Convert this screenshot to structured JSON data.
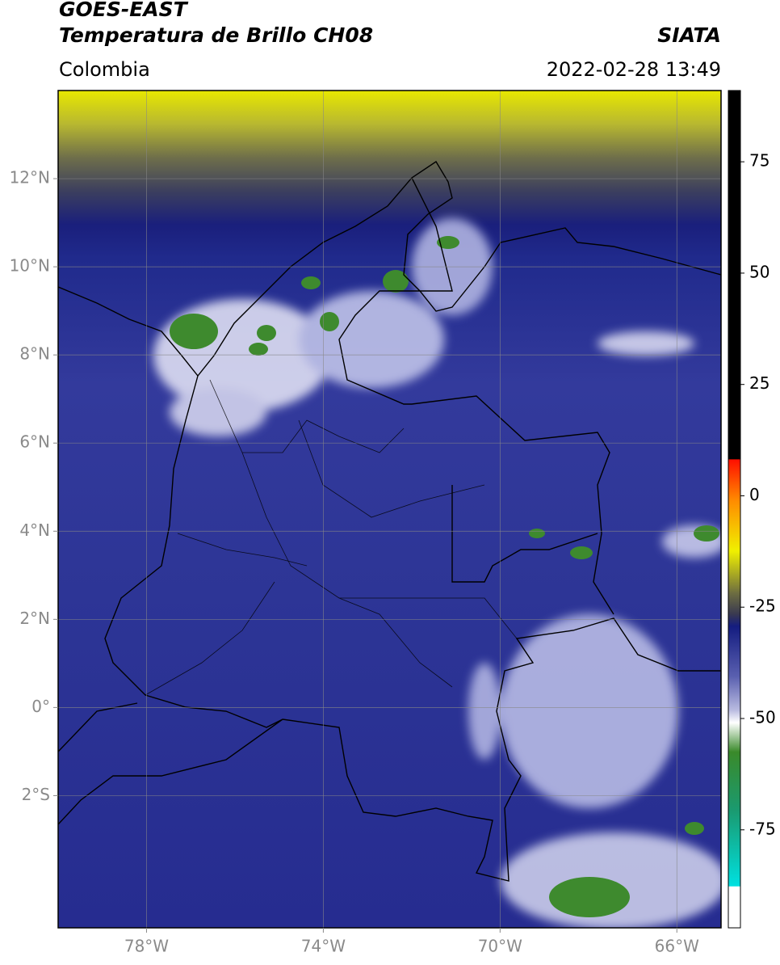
{
  "header": {
    "satellite": "GOES-EAST",
    "product": "Temperatura de Brillo CH08",
    "institution": "SIATA",
    "region": "Colombia",
    "datetime": "2022-02-28 13:49"
  },
  "map": {
    "xlim": [
      -80,
      -65
    ],
    "ylim": [
      -5,
      14
    ],
    "xticks": [
      {
        "value": -78,
        "label": "78°W"
      },
      {
        "value": -74,
        "label": "74°W"
      },
      {
        "value": -70,
        "label": "70°W"
      },
      {
        "value": -66,
        "label": "66°W"
      }
    ],
    "yticks": [
      {
        "value": 12,
        "label": "12°N"
      },
      {
        "value": 10,
        "label": "10°N"
      },
      {
        "value": 8,
        "label": "8°N"
      },
      {
        "value": 6,
        "label": "6°N"
      },
      {
        "value": 4,
        "label": "4°N"
      },
      {
        "value": 2,
        "label": "2°N"
      },
      {
        "value": 0,
        "label": "0°"
      },
      {
        "value": -2,
        "label": "2°S"
      }
    ],
    "grid": true
  },
  "colorbar": {
    "clim": [
      -97,
      91
    ],
    "ticks": [
      75,
      50,
      25,
      0,
      -25,
      -50,
      -75
    ]
  }
}
